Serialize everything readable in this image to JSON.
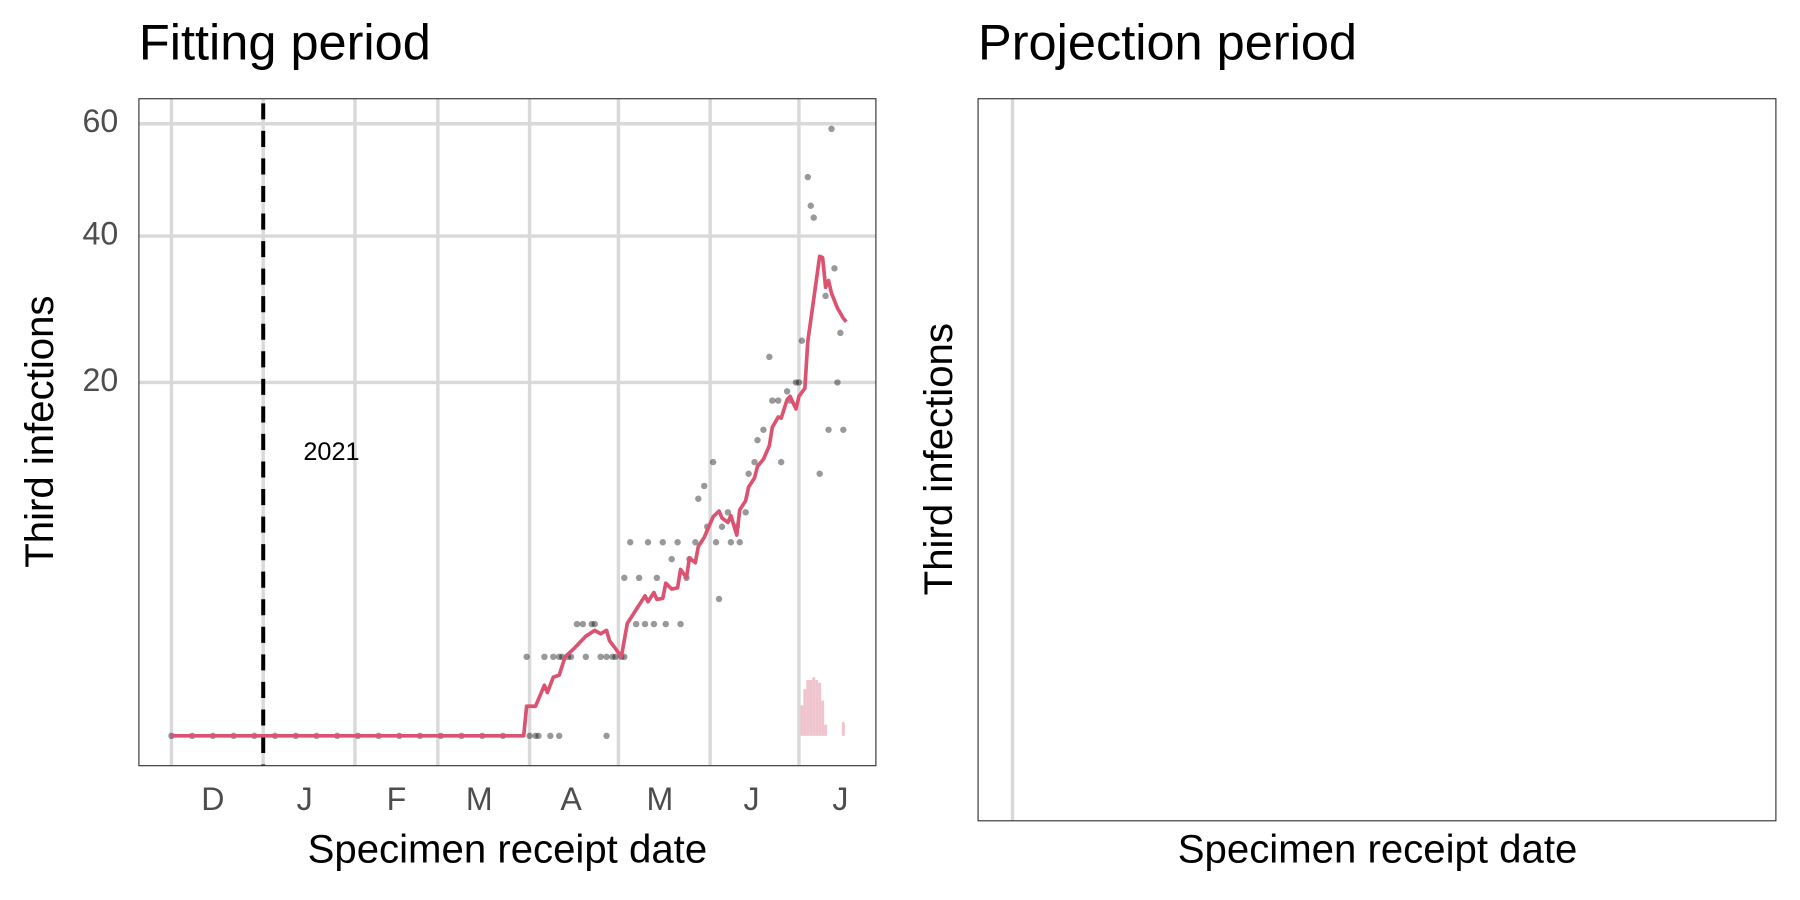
{
  "chart_data": [
    {
      "type": "line",
      "title": "Fitting period",
      "xlabel": "Specimen receipt date",
      "ylabel": "Third infections",
      "yscale": "sqrt",
      "ylim": [
        0,
        65
      ],
      "yticks": [
        20,
        40,
        60
      ],
      "xlim": [
        -11,
        238
      ],
      "xticks": [
        {
          "value": 14,
          "label": "D"
        },
        {
          "value": 45,
          "label": "J"
        },
        {
          "value": 76,
          "label": "F"
        },
        {
          "value": 104,
          "label": "M"
        },
        {
          "value": 135,
          "label": "A"
        },
        {
          "value": 165,
          "label": "M"
        },
        {
          "value": 196,
          "label": "J"
        },
        {
          "value": 226,
          "label": "J"
        }
      ],
      "xgrid": [
        0,
        31,
        62,
        90,
        121,
        151,
        182,
        212
      ],
      "grid": true,
      "vline": 31,
      "annotation": "2021",
      "points": {
        "color": "#000000",
        "x": [
          0,
          7,
          14,
          21,
          28,
          35,
          42,
          49,
          56,
          63,
          70,
          77,
          84,
          91,
          98,
          105,
          112,
          120,
          121,
          123,
          124,
          126,
          128,
          129,
          131,
          131,
          132,
          134,
          135,
          137,
          139,
          140,
          142,
          143,
          145,
          147,
          147,
          149,
          150,
          152,
          153,
          153,
          155,
          157,
          158,
          160,
          161,
          163,
          164,
          166,
          167,
          169,
          171,
          172,
          174,
          175,
          177,
          178,
          180,
          181,
          183,
          184,
          185,
          186,
          188,
          189,
          191,
          192,
          194,
          195,
          197,
          198,
          200,
          202,
          203,
          205,
          206,
          208,
          209,
          211,
          212,
          213,
          215,
          216,
          217,
          219,
          221,
          222,
          223,
          224,
          225,
          226,
          227
        ],
        "values": [
          0,
          0,
          0,
          0,
          0,
          0,
          0,
          0,
          0,
          0,
          0,
          0,
          0,
          0,
          0,
          0,
          0,
          1,
          0,
          0,
          0,
          1,
          0,
          1,
          0,
          1,
          1,
          1,
          1,
          2,
          2,
          1,
          2,
          2,
          1,
          0,
          1,
          1,
          1,
          1,
          1,
          4,
          6,
          2,
          4,
          2,
          6,
          2,
          4,
          6,
          2,
          5,
          6,
          2,
          4,
          5,
          6,
          9,
          10,
          7,
          12,
          6,
          3,
          7,
          8,
          6,
          7,
          6,
          8,
          11,
          12,
          14,
          15,
          23,
          18,
          18,
          12,
          19,
          18,
          20,
          20,
          25,
          50,
          45,
          43,
          11,
          31,
          15,
          59,
          35,
          20,
          26,
          15
        ]
      },
      "fit": {
        "color": "#dc5271",
        "x": [
          0,
          119,
          120,
          123,
          126,
          127,
          129,
          131,
          133,
          136,
          140,
          143,
          145,
          147,
          148,
          150,
          152,
          154,
          157,
          160,
          161,
          163,
          164,
          166,
          167,
          169,
          171,
          172,
          174,
          175,
          177,
          178,
          180,
          181,
          183,
          185,
          186,
          188,
          189,
          191,
          192,
          194,
          195,
          197,
          198,
          200,
          202,
          203,
          205,
          206,
          208,
          209,
          211,
          212,
          214,
          215,
          217,
          219,
          220,
          221,
          222,
          223,
          225,
          227,
          228
        ],
        "values": [
          0,
          0,
          0.14,
          0.14,
          0.41,
          0.3,
          0.55,
          0.59,
          1.0,
          1.22,
          1.59,
          1.78,
          1.67,
          1.78,
          1.45,
          1.22,
          1.0,
          2.02,
          2.55,
          3.14,
          2.88,
          3.29,
          2.98,
          3.03,
          3.73,
          3.45,
          3.51,
          4.43,
          4.01,
          5.06,
          4.8,
          5.74,
          6.3,
          6.75,
          7.68,
          8.09,
          7.6,
          7.29,
          7.77,
          6.45,
          8.18,
          8.85,
          9.92,
          10.66,
          11.63,
          12.24,
          13.48,
          15.24,
          16.28,
          16.16,
          18.09,
          18.46,
          17.11,
          18.46,
          19.34,
          24.93,
          30.58,
          36.81,
          36.63,
          32.21,
          33.2,
          31.38,
          29.31,
          27.91,
          27.46
        ]
      },
      "density": {
        "color": "#f0c4cf",
        "x": [
          213,
          214,
          215,
          216,
          217,
          218,
          219,
          220,
          221,
          227
        ],
        "values": [
          0.15,
          0.35,
          0.5,
          0.5,
          0.55,
          0.5,
          0.45,
          0.2,
          0.02,
          0.03
        ]
      }
    },
    {
      "type": "line",
      "title": "Projection period",
      "xlabel": "Specimen receipt date",
      "ylabel": "Third infections"
    }
  ]
}
